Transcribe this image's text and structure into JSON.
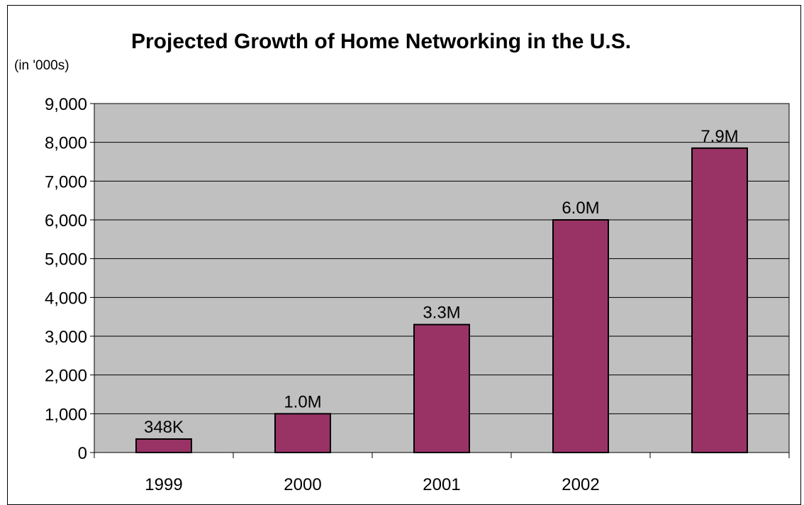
{
  "colors": {
    "plot_bg": "#c0c0c0",
    "bar": "#993366",
    "outline": "#000000"
  },
  "chart_data": {
    "type": "bar",
    "title": "Projected Growth of Home Networking in the U.S.",
    "unit_label": "(in '000s)",
    "categories": [
      "1999",
      "2000",
      "2001",
      "2002",
      ""
    ],
    "values": [
      348,
      1000,
      3300,
      6000,
      7850
    ],
    "data_labels": [
      "348K",
      "1.0M",
      "3.3M",
      "6.0M",
      "7.9M"
    ],
    "y_ticks": [
      "0",
      "1,000",
      "2,000",
      "3,000",
      "4,000",
      "5,000",
      "6,000",
      "7,000",
      "8,000",
      "9,000"
    ],
    "ylim": [
      0,
      9000
    ],
    "grid": true
  }
}
